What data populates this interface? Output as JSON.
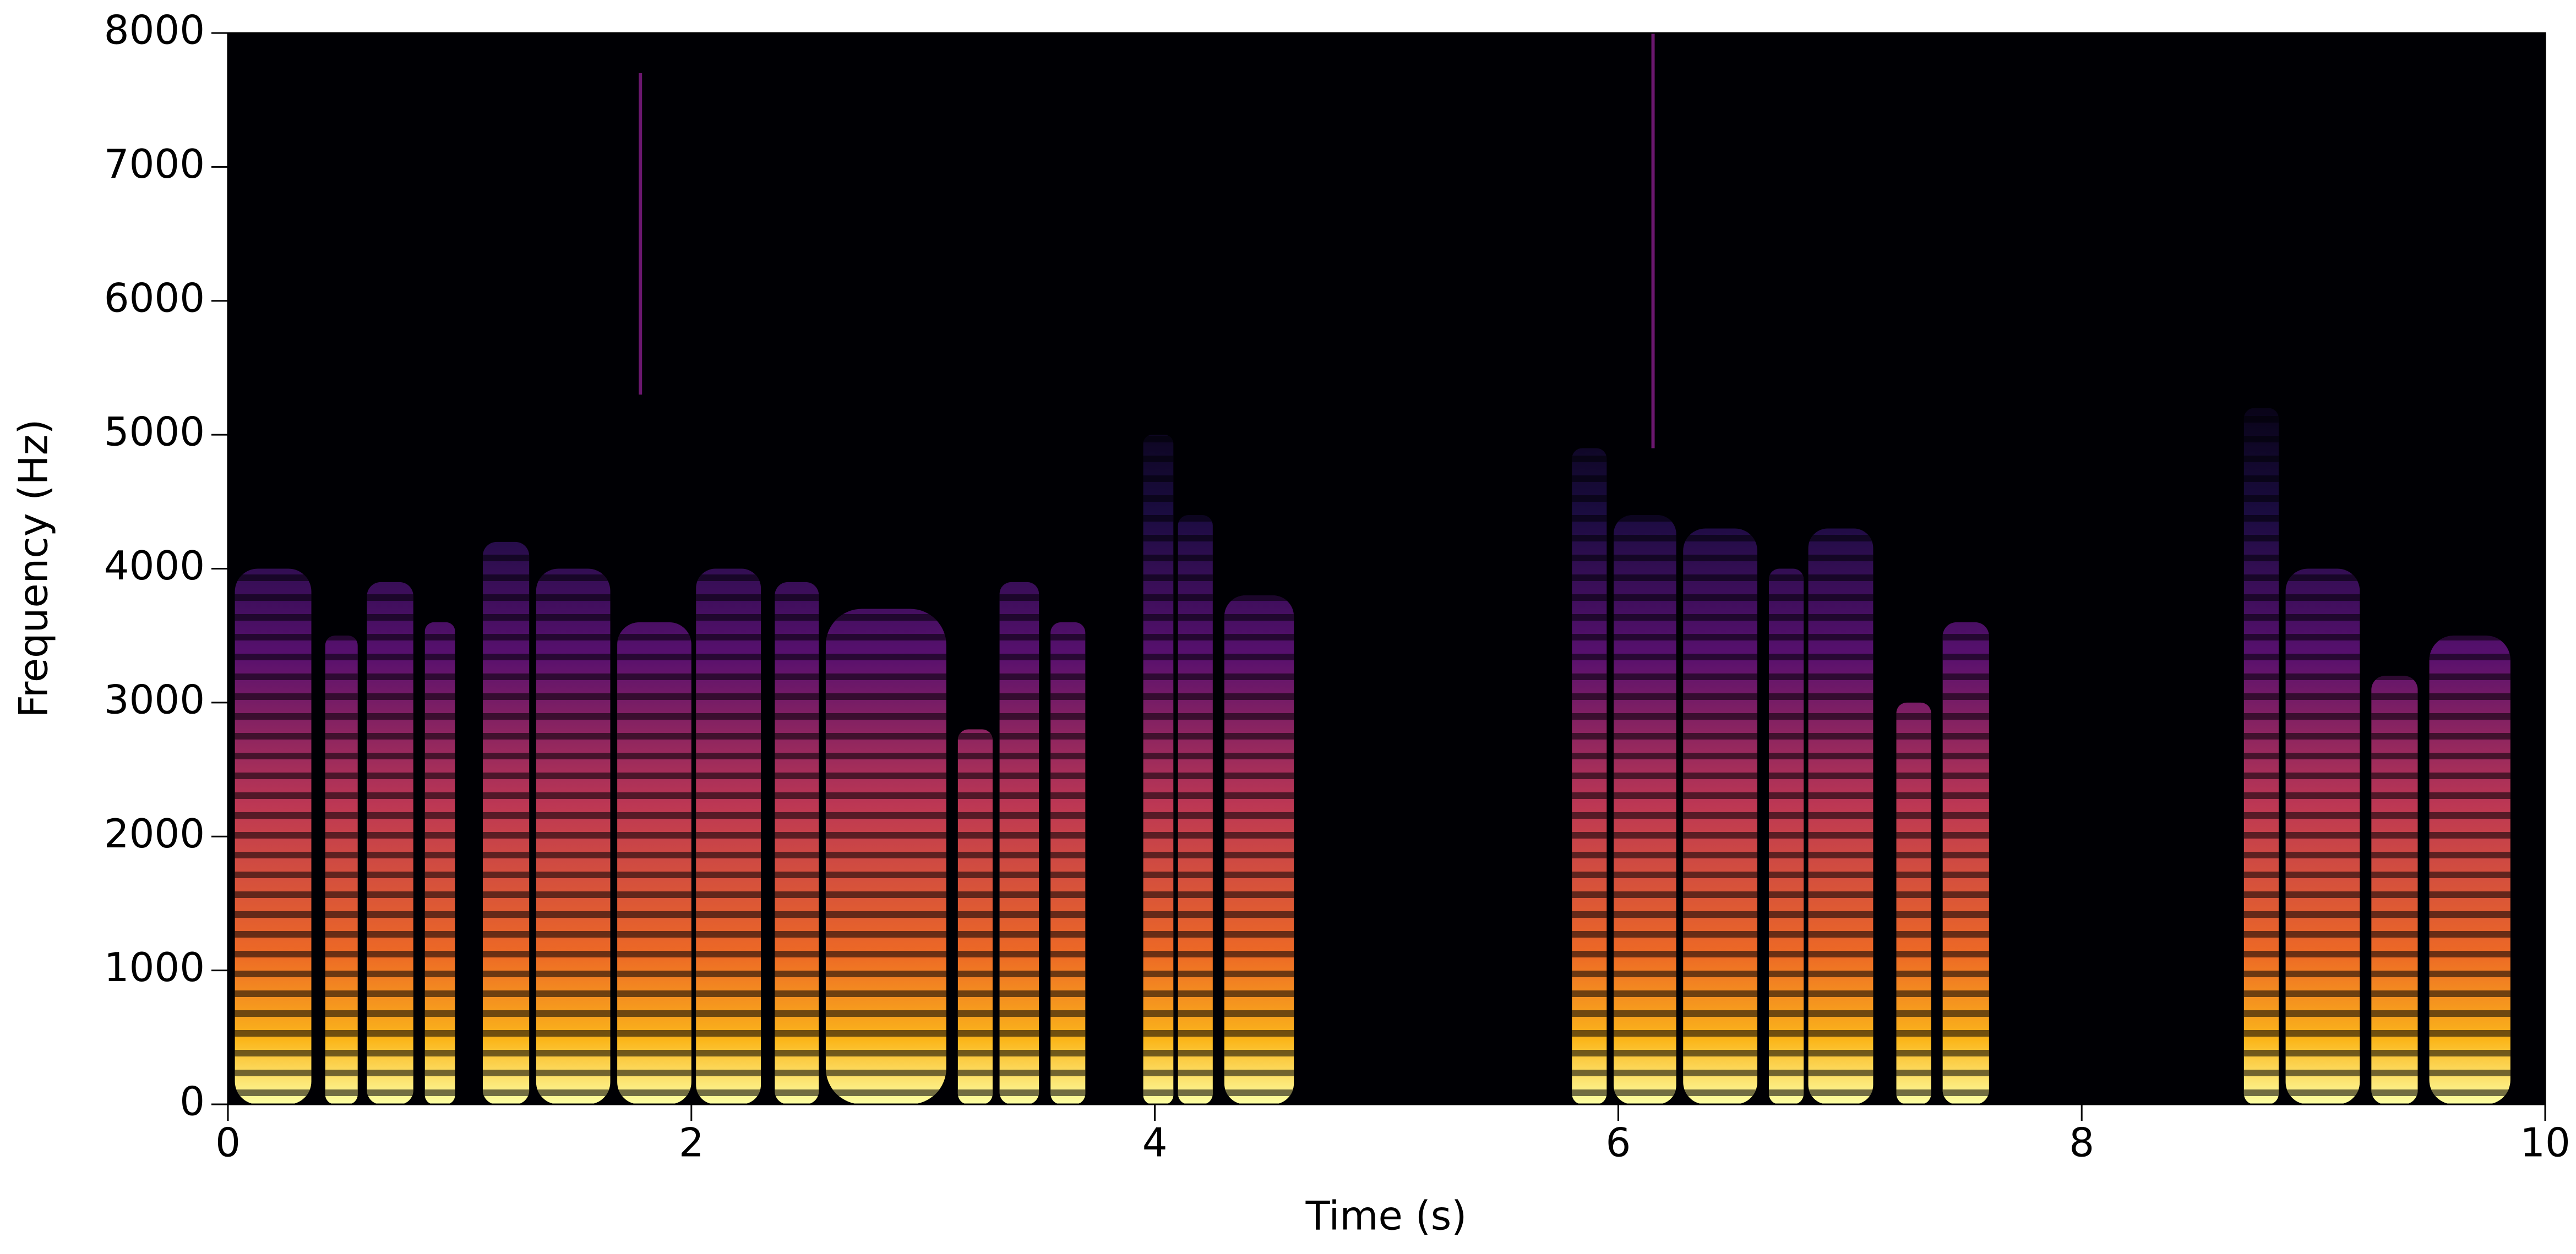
{
  "chart_data": {
    "type": "spectrogram",
    "xlabel": "Time (s)",
    "ylabel": "Frequency (Hz)",
    "xlim": [
      0,
      10
    ],
    "ylim": [
      0,
      8000
    ],
    "xticks": [
      0,
      2,
      4,
      6,
      8,
      10
    ],
    "yticks": [
      0,
      1000,
      2000,
      3000,
      4000,
      5000,
      6000,
      7000,
      8000
    ],
    "colormap": "inferno",
    "segments": [
      {
        "start": 0.03,
        "end": 0.36,
        "fmax": 4000
      },
      {
        "start": 0.42,
        "end": 0.56,
        "fmax": 3500
      },
      {
        "start": 0.6,
        "end": 0.8,
        "fmax": 3900
      },
      {
        "start": 0.85,
        "end": 0.98,
        "fmax": 3600
      },
      {
        "start": 1.1,
        "end": 1.3,
        "fmax": 4200
      },
      {
        "start": 1.33,
        "end": 1.65,
        "fmax": 4000
      },
      {
        "start": 1.68,
        "end": 2.0,
        "fmax": 3600
      },
      {
        "start": 2.02,
        "end": 2.3,
        "fmax": 4000
      },
      {
        "start": 2.36,
        "end": 2.55,
        "fmax": 3900
      },
      {
        "start": 2.58,
        "end": 3.1,
        "fmax": 3700
      },
      {
        "start": 3.15,
        "end": 3.3,
        "fmax": 2800
      },
      {
        "start": 3.33,
        "end": 3.5,
        "fmax": 3900
      },
      {
        "start": 3.55,
        "end": 3.7,
        "fmax": 3600
      },
      {
        "start": 3.95,
        "end": 4.08,
        "fmax": 5000
      },
      {
        "start": 4.1,
        "end": 4.25,
        "fmax": 4400
      },
      {
        "start": 4.3,
        "end": 4.6,
        "fmax": 3800
      },
      {
        "start": 5.8,
        "end": 5.95,
        "fmax": 4900
      },
      {
        "start": 5.98,
        "end": 6.25,
        "fmax": 4400
      },
      {
        "start": 6.28,
        "end": 6.6,
        "fmax": 4300
      },
      {
        "start": 6.65,
        "end": 6.8,
        "fmax": 4000
      },
      {
        "start": 6.82,
        "end": 7.1,
        "fmax": 4300
      },
      {
        "start": 7.2,
        "end": 7.35,
        "fmax": 3000
      },
      {
        "start": 7.4,
        "end": 7.6,
        "fmax": 3600
      },
      {
        "start": 8.7,
        "end": 8.85,
        "fmax": 5200
      },
      {
        "start": 8.88,
        "end": 9.2,
        "fmax": 4000
      },
      {
        "start": 9.25,
        "end": 9.45,
        "fmax": 3200
      },
      {
        "start": 9.5,
        "end": 9.85,
        "fmax": 3500
      }
    ],
    "transients": [
      {
        "time": 1.78,
        "fmin": 5300,
        "fmax": 7700
      },
      {
        "time": 6.15,
        "fmin": 4900,
        "fmax": 8000
      }
    ]
  }
}
